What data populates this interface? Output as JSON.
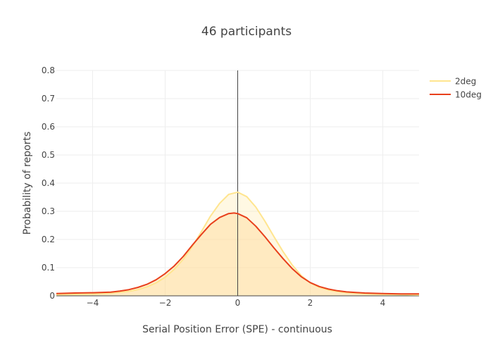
{
  "chart_data": {
    "type": "area",
    "title": "46 participants",
    "xlabel": "Serial Position Error (SPE) - continuous",
    "ylabel": "Probability of reports",
    "xlim": [
      -5,
      5
    ],
    "ylim": [
      0,
      0.8
    ],
    "x_ticks": [
      -4,
      -2,
      0,
      2,
      4
    ],
    "x_tick_labels": [
      "−4",
      "−2",
      "0",
      "2",
      "4"
    ],
    "y_ticks": [
      0,
      0.1,
      0.2,
      0.3,
      0.4,
      0.5,
      0.6,
      0.7,
      0.8
    ],
    "y_tick_labels": [
      "0",
      "0.1",
      "0.2",
      "0.3",
      "0.4",
      "0.5",
      "0.6",
      "0.7",
      "0.8"
    ],
    "grid": true,
    "zero_line_x": 0,
    "legend_position": "top-right",
    "series": [
      {
        "name": "2deg",
        "color": "#ffe58f",
        "fill": "rgba(255,229,143,0.25)",
        "x": [
          -5,
          -4.5,
          -4,
          -3.5,
          -3,
          -2.75,
          -2.5,
          -2.25,
          -2,
          -1.75,
          -1.5,
          -1.25,
          -1,
          -0.75,
          -0.5,
          -0.25,
          0,
          0.25,
          0.5,
          0.75,
          1,
          1.25,
          1.5,
          1.75,
          2,
          2.25,
          2.5,
          2.75,
          3,
          3.5,
          4,
          4.5,
          5
        ],
        "y": [
          0.004,
          0.005,
          0.006,
          0.009,
          0.016,
          0.022,
          0.032,
          0.046,
          0.066,
          0.094,
          0.13,
          0.175,
          0.228,
          0.283,
          0.328,
          0.36,
          0.368,
          0.352,
          0.315,
          0.265,
          0.21,
          0.157,
          0.11,
          0.072,
          0.046,
          0.03,
          0.021,
          0.015,
          0.011,
          0.007,
          0.005,
          0.004,
          0.003
        ]
      },
      {
        "name": "10deg",
        "color": "#e8401c",
        "fill": "rgba(255,218,150,0.45)",
        "x": [
          -5,
          -4.5,
          -4,
          -3.5,
          -3.25,
          -3,
          -2.75,
          -2.5,
          -2.25,
          -2,
          -1.75,
          -1.5,
          -1.25,
          -1,
          -0.75,
          -0.5,
          -0.25,
          -0.1,
          0,
          0.25,
          0.5,
          0.75,
          1,
          1.25,
          1.5,
          1.75,
          2,
          2.25,
          2.5,
          2.75,
          3,
          3.5,
          4,
          4.5,
          5
        ],
        "y": [
          0.008,
          0.01,
          0.011,
          0.013,
          0.017,
          0.022,
          0.03,
          0.041,
          0.057,
          0.079,
          0.106,
          0.14,
          0.18,
          0.218,
          0.254,
          0.278,
          0.292,
          0.294,
          0.292,
          0.277,
          0.247,
          0.21,
          0.17,
          0.132,
          0.097,
          0.068,
          0.047,
          0.033,
          0.024,
          0.018,
          0.014,
          0.01,
          0.008,
          0.007,
          0.007
        ]
      }
    ]
  }
}
